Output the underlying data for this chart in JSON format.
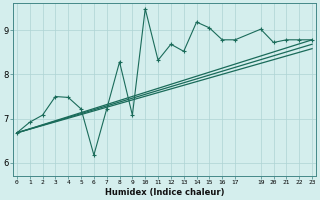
{
  "xlabel": "Humidex (Indice chaleur)",
  "bg_color": "#d4eeed",
  "line_color": "#1a6b5a",
  "grid_color": "#aed4d4",
  "x_ticks": [
    0,
    1,
    2,
    3,
    4,
    5,
    6,
    7,
    8,
    9,
    10,
    11,
    12,
    13,
    14,
    15,
    16,
    17,
    19,
    20,
    21,
    22,
    23
  ],
  "x_tick_labels": [
    "0",
    "1",
    "2",
    "3",
    "4",
    "5",
    "6",
    "7",
    "8",
    "9",
    "10",
    "11",
    "12",
    "13",
    "14",
    "15",
    "16",
    "17",
    "19",
    "20",
    "21",
    "22",
    "23"
  ],
  "ylim": [
    5.7,
    9.6
  ],
  "xlim": [
    -0.3,
    23.3
  ],
  "series1_x": [
    0,
    1,
    2,
    3,
    4,
    5,
    6,
    7,
    8,
    9,
    10,
    11,
    12,
    13,
    14,
    15,
    16,
    17,
    19,
    20,
    21,
    22,
    23
  ],
  "series1_y": [
    6.68,
    6.92,
    7.08,
    7.5,
    7.48,
    7.22,
    6.18,
    7.22,
    8.28,
    7.08,
    9.48,
    8.32,
    8.68,
    8.52,
    9.18,
    9.05,
    8.78,
    8.78,
    9.02,
    8.72,
    8.78,
    8.78,
    8.78
  ],
  "series2_x": [
    0,
    23
  ],
  "series2_y": [
    6.68,
    8.78
  ],
  "series3_x": [
    0,
    23
  ],
  "series3_y": [
    6.68,
    8.68
  ],
  "series4_x": [
    0,
    23
  ],
  "series4_y": [
    6.68,
    8.58
  ]
}
